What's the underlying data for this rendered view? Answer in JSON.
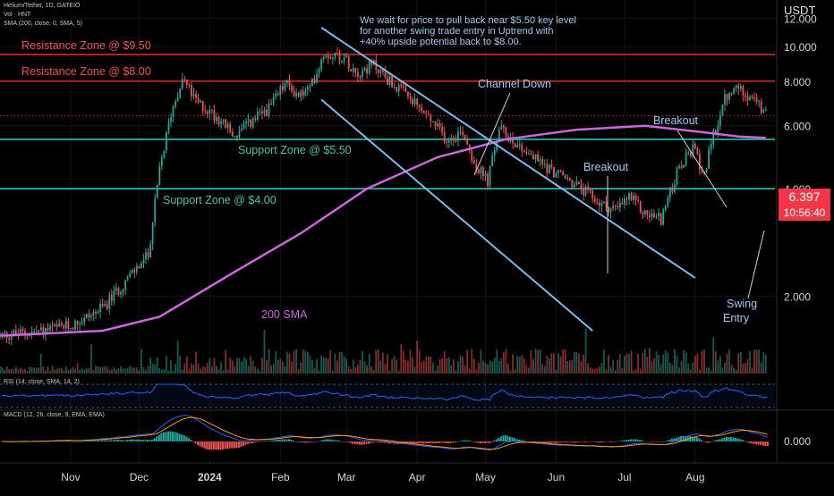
{
  "header": {
    "title": "Helium/Tether, 1D, GATEIO",
    "volume_label": "Vol · HNT",
    "sma_label": "SMA (200, close, 0, SMA, 5)",
    "currency": "USDT"
  },
  "price_badge": {
    "price": "6.397",
    "countdown": "10:56:40"
  },
  "colors": {
    "up": "#26a69a",
    "down": "#ef5350",
    "sma": "#cc66dd",
    "resistance": "#b22222",
    "support": "#26a69a",
    "channel": "#7fb8e6",
    "rsi": "#2962ff",
    "macd": "#2962ff",
    "signal": "#ff9800",
    "note": "#9ecbf0",
    "price_badge": "#f23645"
  },
  "chart_data": [
    {
      "type": "candlestick",
      "panel": "price",
      "title": "Helium/Tether, 1D, GATEIO",
      "y_scale": "log",
      "ylim": [
        1.2,
        13.5
      ],
      "y_ticks": [
        "12.000",
        "10.000",
        "8.000",
        "6.000",
        "4.000",
        "2.000"
      ],
      "x_ticks": [
        "Nov",
        "Dec",
        "2024",
        "Feb",
        "Mar",
        "Apr",
        "May",
        "Jun",
        "Jul",
        "Aug"
      ],
      "x_range": [
        "2023-10-01",
        "2024-09-05"
      ],
      "price_path": [
        {
          "date": "2023-10-01",
          "close": 1.55
        },
        {
          "date": "2023-10-20",
          "close": 1.6
        },
        {
          "date": "2023-11-01",
          "close": 1.65
        },
        {
          "date": "2023-11-15",
          "close": 1.85
        },
        {
          "date": "2023-11-25",
          "close": 2.2
        },
        {
          "date": "2023-12-05",
          "close": 2.6
        },
        {
          "date": "2023-12-10",
          "close": 4.5
        },
        {
          "date": "2023-12-15",
          "close": 6.5
        },
        {
          "date": "2023-12-20",
          "close": 8.2
        },
        {
          "date": "2023-12-26",
          "close": 7.0
        },
        {
          "date": "2024-01-05",
          "close": 6.3
        },
        {
          "date": "2024-01-12",
          "close": 5.6
        },
        {
          "date": "2024-01-20",
          "close": 6.2
        },
        {
          "date": "2024-01-28",
          "close": 6.8
        },
        {
          "date": "2024-02-03",
          "close": 7.9
        },
        {
          "date": "2024-02-09",
          "close": 7.3
        },
        {
          "date": "2024-02-14",
          "close": 7.6
        },
        {
          "date": "2024-02-20",
          "close": 9.6
        },
        {
          "date": "2024-02-28",
          "close": 9.4
        },
        {
          "date": "2024-03-06",
          "close": 8.5
        },
        {
          "date": "2024-03-13",
          "close": 8.9
        },
        {
          "date": "2024-03-20",
          "close": 8.0
        },
        {
          "date": "2024-03-26",
          "close": 7.4
        },
        {
          "date": "2024-04-01",
          "close": 6.8
        },
        {
          "date": "2024-04-07",
          "close": 6.2
        },
        {
          "date": "2024-04-14",
          "close": 5.5
        },
        {
          "date": "2024-04-21",
          "close": 5.8
        },
        {
          "date": "2024-04-27",
          "close": 4.6
        },
        {
          "date": "2024-05-02",
          "close": 4.2
        },
        {
          "date": "2024-05-07",
          "close": 5.9
        },
        {
          "date": "2024-05-14",
          "close": 5.4
        },
        {
          "date": "2024-05-22",
          "close": 4.9
        },
        {
          "date": "2024-05-30",
          "close": 4.5
        },
        {
          "date": "2024-06-07",
          "close": 4.2
        },
        {
          "date": "2024-06-14",
          "close": 3.9
        },
        {
          "date": "2024-06-21",
          "close": 3.6
        },
        {
          "date": "2024-06-28",
          "close": 3.5
        },
        {
          "date": "2024-07-03",
          "close": 3.8
        },
        {
          "date": "2024-07-10",
          "close": 3.4
        },
        {
          "date": "2024-07-17",
          "close": 3.3
        },
        {
          "date": "2024-07-24",
          "close": 4.4
        },
        {
          "date": "2024-07-31",
          "close": 5.2
        },
        {
          "date": "2024-08-05",
          "close": 4.4
        },
        {
          "date": "2024-08-09",
          "close": 5.6
        },
        {
          "date": "2024-08-14",
          "close": 7.1
        },
        {
          "date": "2024-08-20",
          "close": 7.7
        },
        {
          "date": "2024-08-26",
          "close": 7.2
        },
        {
          "date": "2024-09-01",
          "close": 6.4
        }
      ],
      "sma_200": [
        {
          "date": "2023-10-01",
          "value": 1.55
        },
        {
          "date": "2023-11-15",
          "value": 1.6
        },
        {
          "date": "2023-12-10",
          "value": 1.75
        },
        {
          "date": "2024-01-10",
          "value": 2.3
        },
        {
          "date": "2024-02-10",
          "value": 3.0
        },
        {
          "date": "2024-03-10",
          "value": 4.0
        },
        {
          "date": "2024-04-10",
          "value": 4.9
        },
        {
          "date": "2024-05-10",
          "value": 5.5
        },
        {
          "date": "2024-06-10",
          "value": 5.85
        },
        {
          "date": "2024-07-10",
          "value": 6.0
        },
        {
          "date": "2024-08-05",
          "value": 5.75
        },
        {
          "date": "2024-08-20",
          "value": 5.6
        },
        {
          "date": "2024-09-01",
          "value": 5.55
        }
      ],
      "horizontal_levels": [
        {
          "label": "Resistance Zone @ $9.50",
          "value": 9.5,
          "kind": "resistance"
        },
        {
          "label": "Resistance Zone @ $8.00",
          "value": 8.0,
          "kind": "resistance"
        },
        {
          "label": "Support Zone @ $5.50",
          "value": 5.5,
          "kind": "support"
        },
        {
          "label": "Support Zone @ $4.00",
          "value": 4.0,
          "kind": "support"
        }
      ],
      "channel_lines": [
        {
          "from": {
            "date": "2024-02-19",
            "value": 11.3
          },
          "to": {
            "date": "2024-08-01",
            "value": 2.25
          }
        },
        {
          "from": {
            "date": "2024-02-19",
            "value": 7.1
          },
          "to": {
            "date": "2024-06-17",
            "value": 1.6
          }
        }
      ],
      "annotations": {
        "note": [
          "We wait for price to pull back near $5.50 key level",
          "for another swing trade entry in Uptrend with",
          "+40% upside potential back to $8.00."
        ],
        "channel": "Channel Down",
        "breakout_1": "Breakout",
        "breakout_2": "Breakout",
        "sma": "200 SMA",
        "swing_entry": [
          "Swing",
          "Entry"
        ]
      },
      "volume": {
        "label": "Vol · HNT"
      },
      "last_price": 6.397
    },
    {
      "type": "line",
      "panel": "rsi",
      "title": "RSI (14, close, SMA, 14, 2)",
      "ylim": [
        0,
        100
      ],
      "band": [
        30,
        70
      ]
    },
    {
      "type": "histogram+line",
      "panel": "macd",
      "title": "MACD (12, 26, close, 9, EMA, EMA)",
      "y_ticks": [
        "0.000"
      ],
      "series": [
        {
          "role": "macd"
        },
        {
          "role": "signal"
        },
        {
          "role": "histogram"
        }
      ]
    }
  ]
}
